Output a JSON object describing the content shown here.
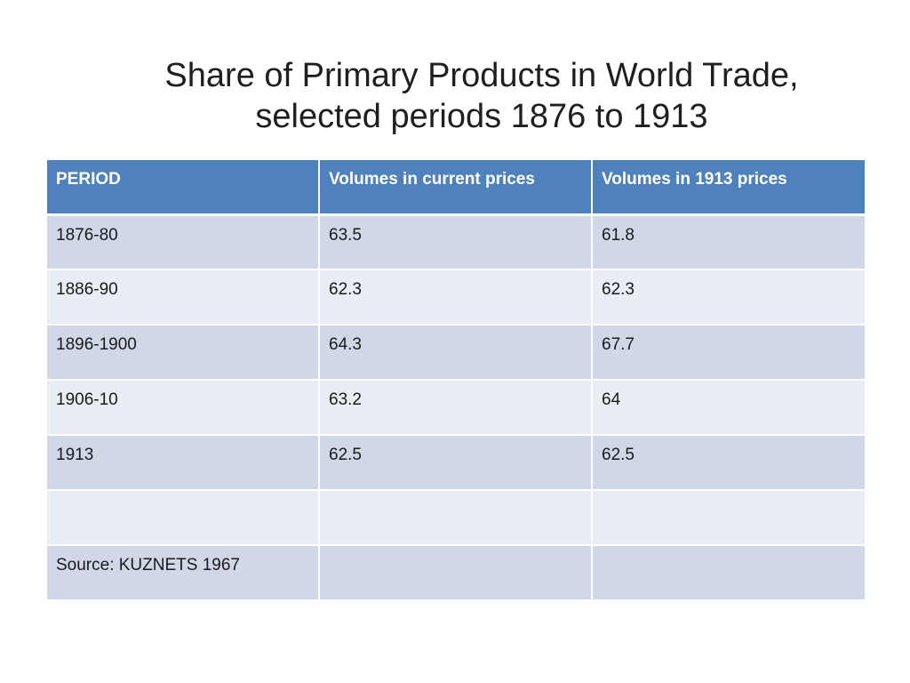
{
  "title": {
    "line1": "Share of Primary Products in World Trade,",
    "line2": "selected periods 1876 to 1913"
  },
  "table": {
    "headers": [
      "PERIOD",
      "Volumes in current prices",
      "Volumes in 1913 prices"
    ],
    "rows": [
      [
        "1876-80",
        "63.5",
        "61.8"
      ],
      [
        "1886-90",
        "62.3",
        "62.3"
      ],
      [
        "1896-1900",
        "64.3",
        "67.7"
      ],
      [
        "1906-10",
        "63.2",
        "64"
      ],
      [
        "1913",
        "62.5",
        "62.5"
      ],
      [
        "",
        "",
        ""
      ],
      [
        "Source: KUZNETS 1967",
        "",
        ""
      ]
    ]
  },
  "colors": {
    "header_bg": "#4f81bd",
    "row_dark": "#d0d8e8",
    "row_light": "#e9edf4"
  }
}
